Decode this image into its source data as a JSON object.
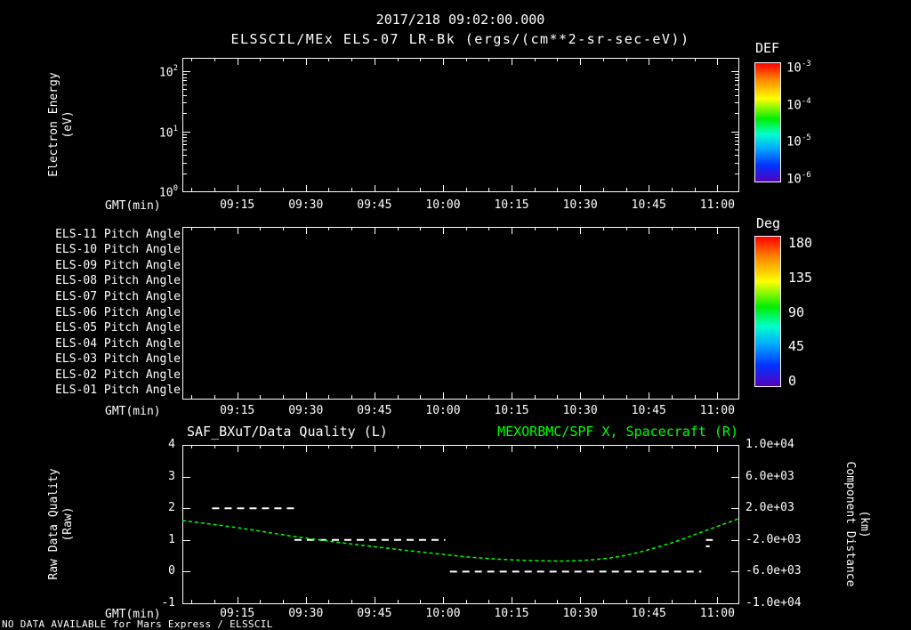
{
  "header": {
    "timestamp": "2017/218 09:02:00.000",
    "title": "ELSSCIL/MEx ELS-07 LR-Bk (ergs/(cm**2-sr-sec-eV))"
  },
  "time_axis": {
    "label": "GMT(min)",
    "tick_labels": [
      "09:15",
      "09:30",
      "09:45",
      "10:00",
      "10:15",
      "10:30",
      "10:45",
      "11:00"
    ],
    "tick_minutes": [
      15,
      30,
      45,
      60,
      75,
      90,
      105,
      120
    ],
    "range_minutes": [
      3,
      124.6
    ]
  },
  "panels": {
    "spectrogram": {
      "ylabel_lines": [
        "Electron Energy",
        "(eV)"
      ],
      "ytick_labels": [
        "10^2",
        "10^1",
        "10^0"
      ],
      "colorbar": {
        "title": "DEF",
        "tick_labels": [
          "10^-3",
          "10^-4",
          "10^-5",
          "10^-6"
        ]
      }
    },
    "pitch": {
      "row_labels": [
        "ELS-11 Pitch Angle",
        "ELS-10 Pitch Angle",
        "ELS-09 Pitch Angle",
        "ELS-08 Pitch Angle",
        "ELS-07 Pitch Angle",
        "ELS-06 Pitch Angle",
        "ELS-05 Pitch Angle",
        "ELS-04 Pitch Angle",
        "ELS-03 Pitch Angle",
        "ELS-02 Pitch Angle",
        "ELS-01 Pitch Angle"
      ],
      "colorbar": {
        "title": "Deg",
        "tick_labels": [
          "180",
          "135",
          "90",
          "45",
          "0"
        ]
      }
    },
    "timeseries": {
      "left_title": "SAF_BXuT/Data Quality (L)",
      "right_title": "MEXORBMC/SPF X, Spacecraft (R)",
      "left_ylabel_lines": [
        "Raw Data Quality",
        "(Raw)"
      ],
      "right_ylabel_lines": [
        "Component Distance",
        "(km)"
      ],
      "left_tick_labels": [
        "4",
        "3",
        "2",
        "1",
        "0",
        "-1"
      ],
      "right_tick_labels": [
        "1.0e+04",
        "6.0e+03",
        "2.0e+03",
        "-2.0e+03",
        "-6.0e+03",
        "-1.0e+04"
      ]
    }
  },
  "footer": {
    "message": "NO DATA AVAILABLE for Mars Express / ELSSCIL"
  },
  "colors": {
    "background": "#000000",
    "foreground": "#ffffff",
    "series_quality": "#ffffff",
    "series_spacecraft": "#00ff00"
  },
  "chart_data": [
    {
      "type": "heatmap",
      "title": "ELSSCIL/MEx ELS-07 LR-Bk (ergs/(cm**2-sr-sec-eV))",
      "xlabel": "GMT(min)",
      "ylabel": "Electron Energy (eV)",
      "x_ticks": [
        "09:15",
        "09:30",
        "09:45",
        "10:00",
        "10:15",
        "10:30",
        "10:45",
        "11:00"
      ],
      "y_scale": "log",
      "y_ticks": [
        100,
        10,
        1
      ],
      "ylim": [
        1,
        167
      ],
      "colorbar": {
        "title": "DEF",
        "scale": "log",
        "ticks": [
          0.001,
          0.0001,
          1e-05,
          1e-06
        ]
      },
      "values": [],
      "status": "no data plotted"
    },
    {
      "type": "heatmap",
      "categories": [
        "ELS-11 Pitch Angle",
        "ELS-10 Pitch Angle",
        "ELS-09 Pitch Angle",
        "ELS-08 Pitch Angle",
        "ELS-07 Pitch Angle",
        "ELS-06 Pitch Angle",
        "ELS-05 Pitch Angle",
        "ELS-04 Pitch Angle",
        "ELS-03 Pitch Angle",
        "ELS-02 Pitch Angle",
        "ELS-01 Pitch Angle"
      ],
      "xlabel": "GMT(min)",
      "x_ticks": [
        "09:15",
        "09:30",
        "09:45",
        "10:00",
        "10:15",
        "10:30",
        "10:45",
        "11:00"
      ],
      "colorbar": {
        "title": "Deg",
        "range": [
          0,
          180
        ],
        "ticks": [
          180,
          135,
          90,
          45,
          0
        ]
      },
      "values": [],
      "status": "no data plotted"
    },
    {
      "type": "line",
      "titles": {
        "left": "SAF_BXuT/Data Quality (L)",
        "right": "MEXORBMC/SPF X, Spacecraft (R)"
      },
      "xlabel": "GMT(min)",
      "x_ticks": [
        "09:15",
        "09:30",
        "09:45",
        "10:00",
        "10:15",
        "10:30",
        "10:45",
        "11:00"
      ],
      "x_tick_minutes_after_0900": [
        15,
        30,
        45,
        60,
        75,
        90,
        105,
        120
      ],
      "x_range_minutes_after_0900": [
        3,
        124.6
      ],
      "left_axis": {
        "label": "Raw Data Quality (Raw)",
        "ylim": [
          -1,
          4
        ],
        "ticks": [
          4,
          3,
          2,
          1,
          0,
          -1
        ]
      },
      "right_axis": {
        "label": "Component Distance (km)",
        "ylim": [
          -10000,
          10000
        ],
        "ticks": [
          10000,
          6000,
          2000,
          -2000,
          -6000,
          -10000
        ]
      },
      "series": [
        {
          "name": "SAF_BXuT/Data Quality",
          "axis": "left",
          "color": "#ffffff",
          "line_style": "dashed",
          "segments": [
            {
              "value": 2,
              "start_min": 9.5,
              "end_min": 28.5
            },
            {
              "value": 1,
              "start_min": 27.5,
              "end_min": 60.5
            },
            {
              "value": 0,
              "start_min": 61.5,
              "end_min": 116.5
            },
            {
              "value": 1,
              "start_min": 117.5,
              "end_min": 119.0
            },
            {
              "value": 0.8,
              "start_min": 117.5,
              "end_min": 118.3
            }
          ]
        },
        {
          "name": "MEXORBMC/SPF X, Spacecraft",
          "axis": "right",
          "color": "#00ff00",
          "line_style": "dashed",
          "points_min_km": [
            [
              3,
              450
            ],
            [
              15,
              -450
            ],
            [
              27.6,
              -1570
            ],
            [
              41,
              -2580
            ],
            [
              54.6,
              -3480
            ],
            [
              68,
              -4270
            ],
            [
              80,
              -4610
            ],
            [
              89.4,
              -4610
            ],
            [
              99,
              -4050
            ],
            [
              108.8,
              -2580
            ],
            [
              116.5,
              -1010
            ],
            [
              124.6,
              670
            ]
          ]
        }
      ]
    }
  ]
}
